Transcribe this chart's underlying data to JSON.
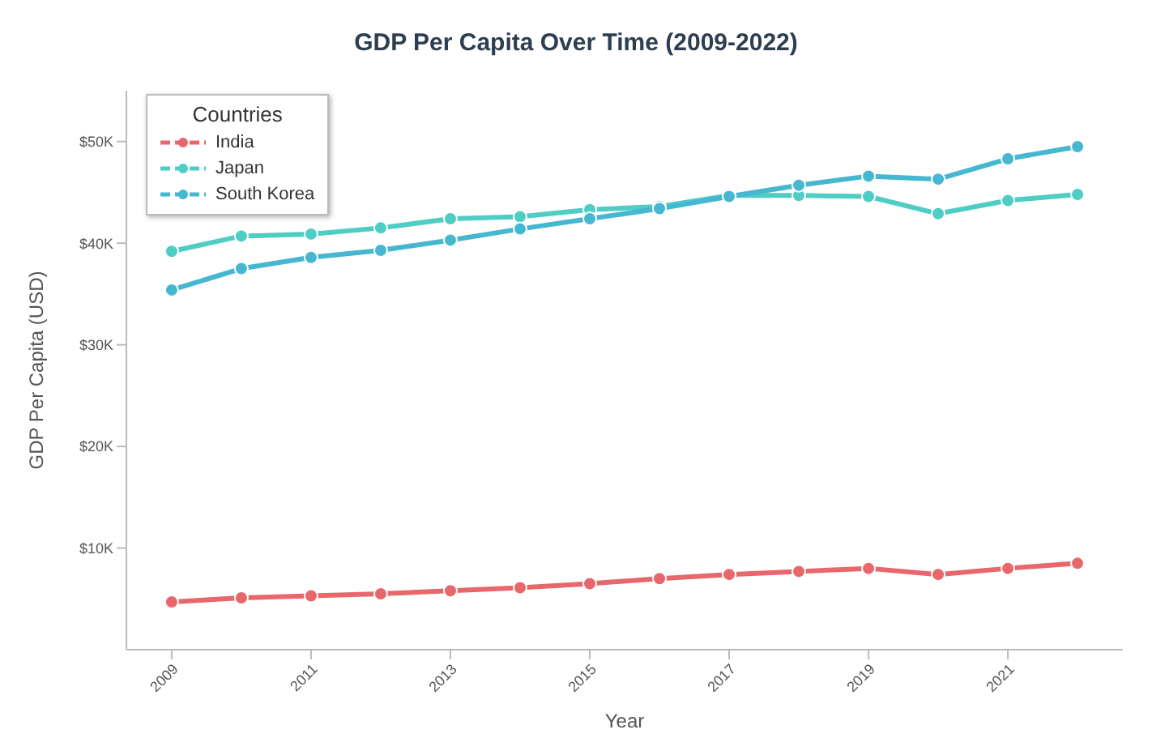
{
  "chart_data": {
    "type": "line",
    "title": "GDP Per Capita Over Time (2009-2022)",
    "xlabel": "Year",
    "ylabel": "GDP Per Capita (USD)",
    "legend_title": "Countries",
    "legend": "top left",
    "marker": "circle",
    "line_style": "solid",
    "grid": false,
    "x": [
      2009,
      2010,
      2011,
      2012,
      2013,
      2014,
      2015,
      2016,
      2017,
      2018,
      2019,
      2020,
      2021,
      2022
    ],
    "xlim": [
      2008.35,
      2022.65
    ],
    "xticks": [
      2009,
      2011,
      2013,
      2015,
      2017,
      2019,
      2021
    ],
    "ylim": [
      0,
      55000
    ],
    "yticks": [
      {
        "value": 10000,
        "label": "$10K"
      },
      {
        "value": 20000,
        "label": "$20K"
      },
      {
        "value": 30000,
        "label": "$30K"
      },
      {
        "value": 40000,
        "label": "$40K"
      },
      {
        "value": 50000,
        "label": "$50K"
      }
    ],
    "series": [
      {
        "name": "India",
        "color": "#e8676b",
        "values": [
          4700,
          5100,
          5300,
          5500,
          5800,
          6100,
          6500,
          7000,
          7400,
          7700,
          8000,
          7400,
          8000,
          8500
        ]
      },
      {
        "name": "Japan",
        "color": "#4ecdc4",
        "values": [
          39200,
          40700,
          40900,
          41500,
          42400,
          42600,
          43300,
          43600,
          44700,
          44700,
          44600,
          42900,
          44200,
          44800
        ]
      },
      {
        "name": "South Korea",
        "color": "#45b7d1",
        "values": [
          35400,
          37500,
          38600,
          39300,
          40300,
          41400,
          42400,
          43400,
          44600,
          45700,
          46600,
          46300,
          48300,
          49500
        ]
      }
    ]
  }
}
